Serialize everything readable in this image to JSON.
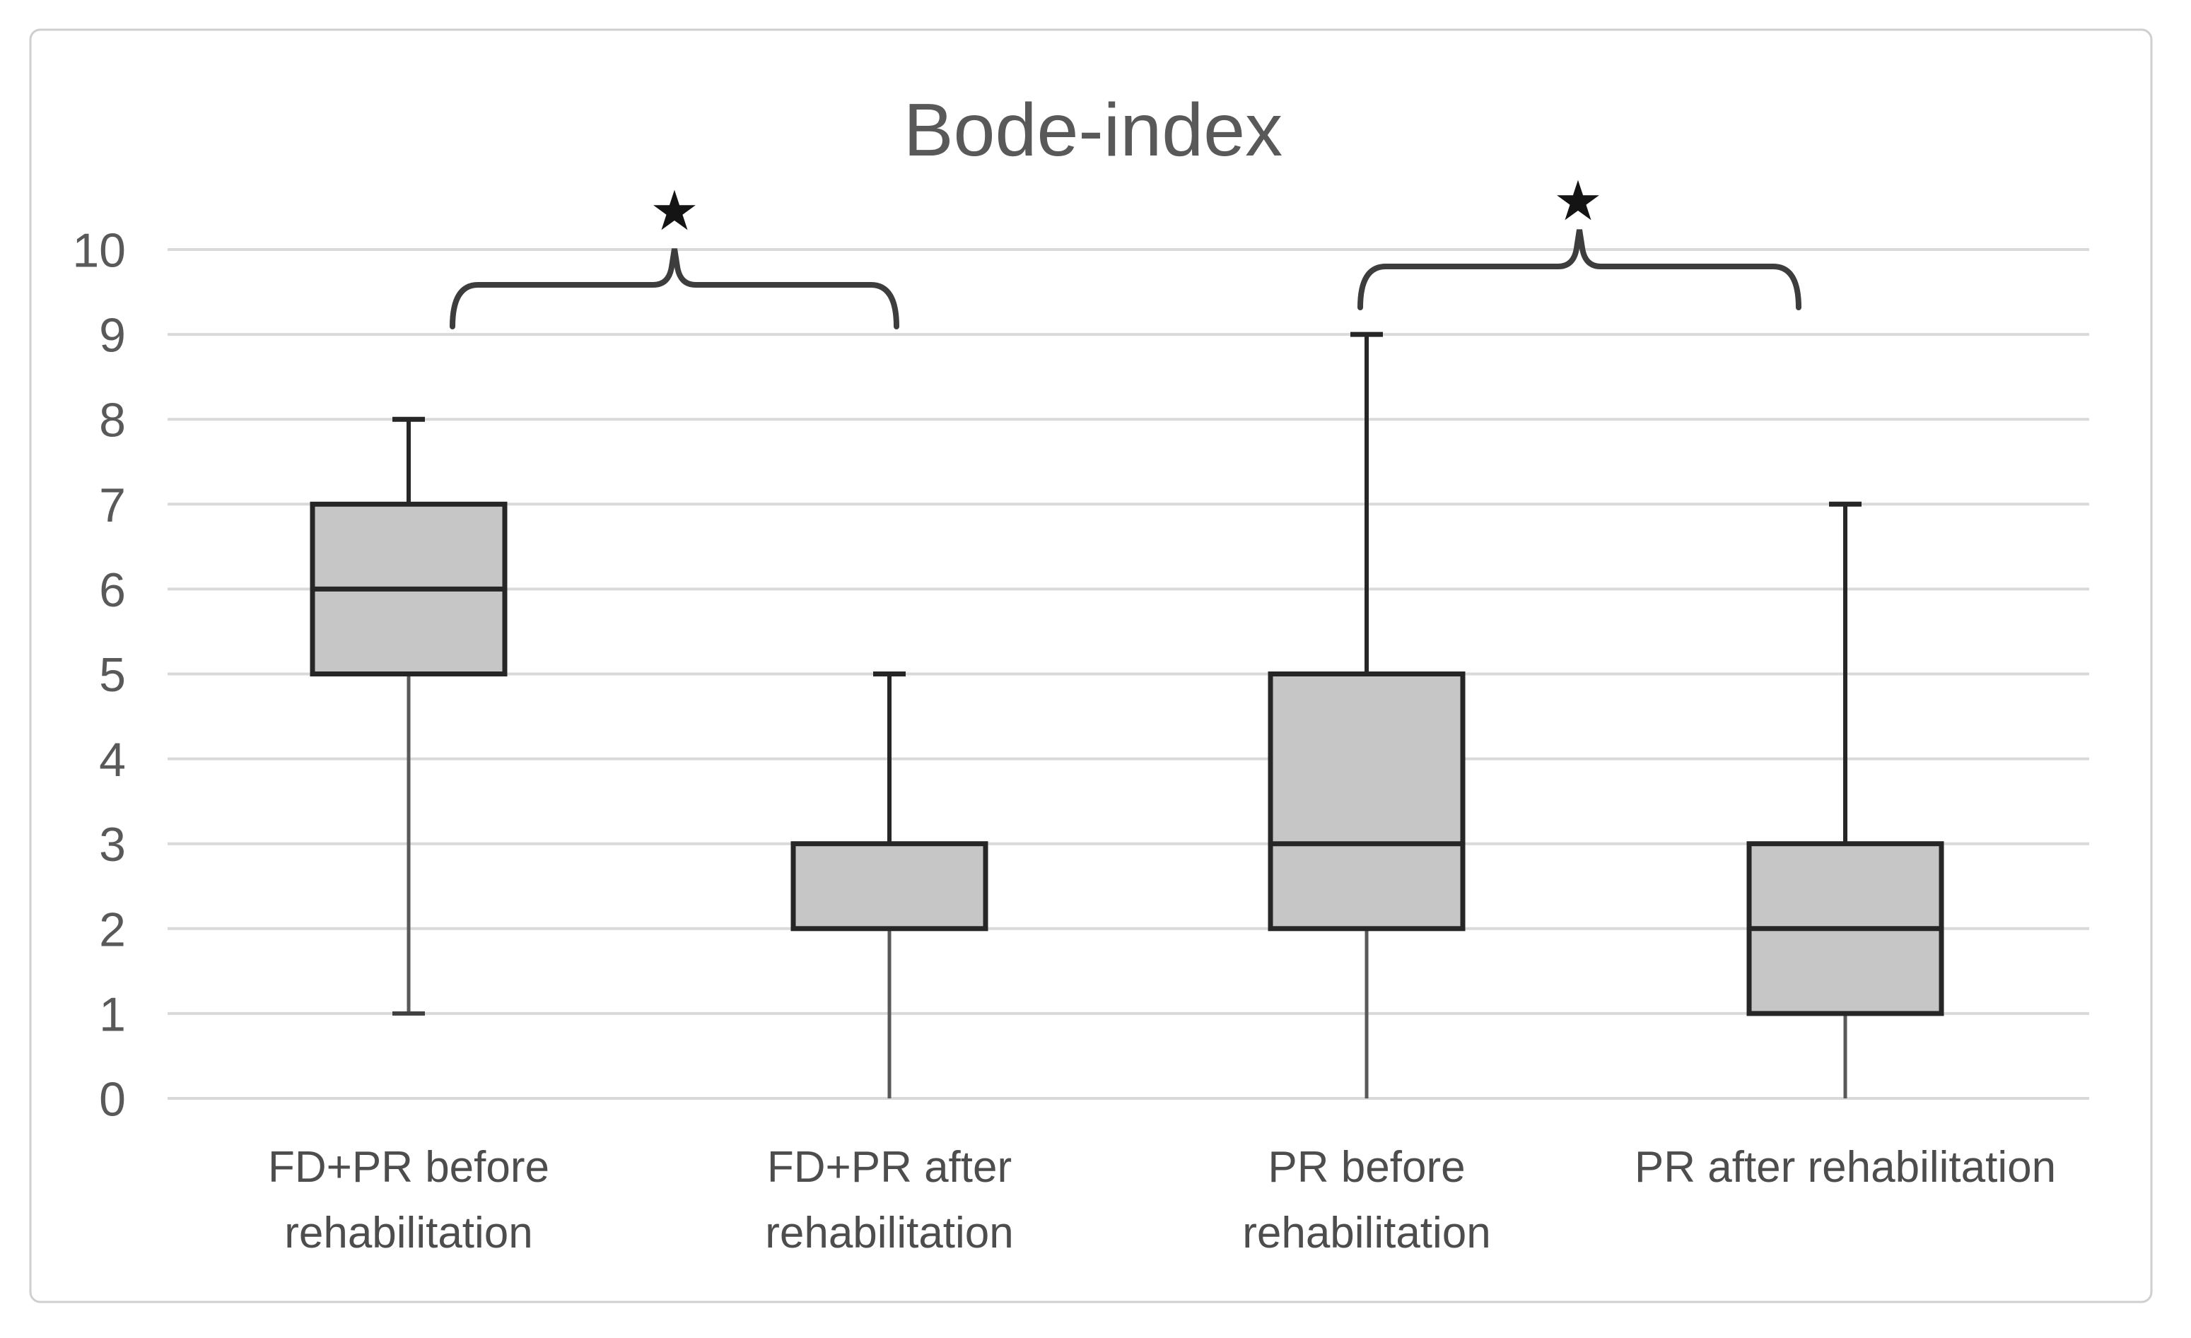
{
  "title": "Bode-index",
  "chart_data": {
    "type": "boxplot",
    "title": "Bode-index",
    "categories": [
      "FD+PR before rehabilitation",
      "FD+PR after rehabilitation",
      "PR before rehabilitation",
      "PR after rehabilitation"
    ],
    "category_label_lines": [
      [
        "FD+PR before",
        "rehabilitation"
      ],
      [
        "FD+PR after",
        "rehabilitation"
      ],
      [
        "PR before",
        "rehabilitation"
      ],
      [
        "PR after rehabilitation"
      ]
    ],
    "series": [
      {
        "name": "FD+PR before rehabilitation",
        "min": 1,
        "q1": 5,
        "median": 6,
        "q3": 7,
        "max": 8
      },
      {
        "name": "FD+PR after rehabilitation",
        "min": 0,
        "q1": 2,
        "median": null,
        "q3": 3,
        "max": 5
      },
      {
        "name": "PR before rehabilitation",
        "min": 0,
        "q1": 2,
        "median": 3,
        "q3": 5,
        "max": 9
      },
      {
        "name": "PR after rehabilitation",
        "min": 0,
        "q1": 1,
        "median": 2,
        "q3": 3,
        "max": 7
      }
    ],
    "ylim": [
      0,
      10
    ],
    "yticks": [
      0,
      1,
      2,
      3,
      4,
      5,
      6,
      7,
      8,
      9,
      10
    ],
    "xlabel": "",
    "ylabel": "",
    "grid": "horizontal",
    "legend": "none",
    "annotations": [
      {
        "type": "significance-bracket",
        "between": [
          "FD+PR before rehabilitation",
          "FD+PR after rehabilitation"
        ],
        "symbol": "★"
      },
      {
        "type": "significance-bracket",
        "between": [
          "PR before rehabilitation",
          "PR after rehabilitation"
        ],
        "symbol": "★"
      }
    ],
    "colors": {
      "background": "#ffffff",
      "chart_border": "#cfcfcf",
      "gridline": "#d9d9d9",
      "box_fill": "#c6c6c6",
      "box_border": "#262626",
      "median": "#262626",
      "upper_whisker": "#262626",
      "lower_whisker": "#595959",
      "whisker_cap": "#404040",
      "bracket": "#3d3d3d",
      "star": "#141414",
      "title_text": "#595959",
      "axis_text": "#595959",
      "category_text": "#4d4d4d"
    }
  }
}
